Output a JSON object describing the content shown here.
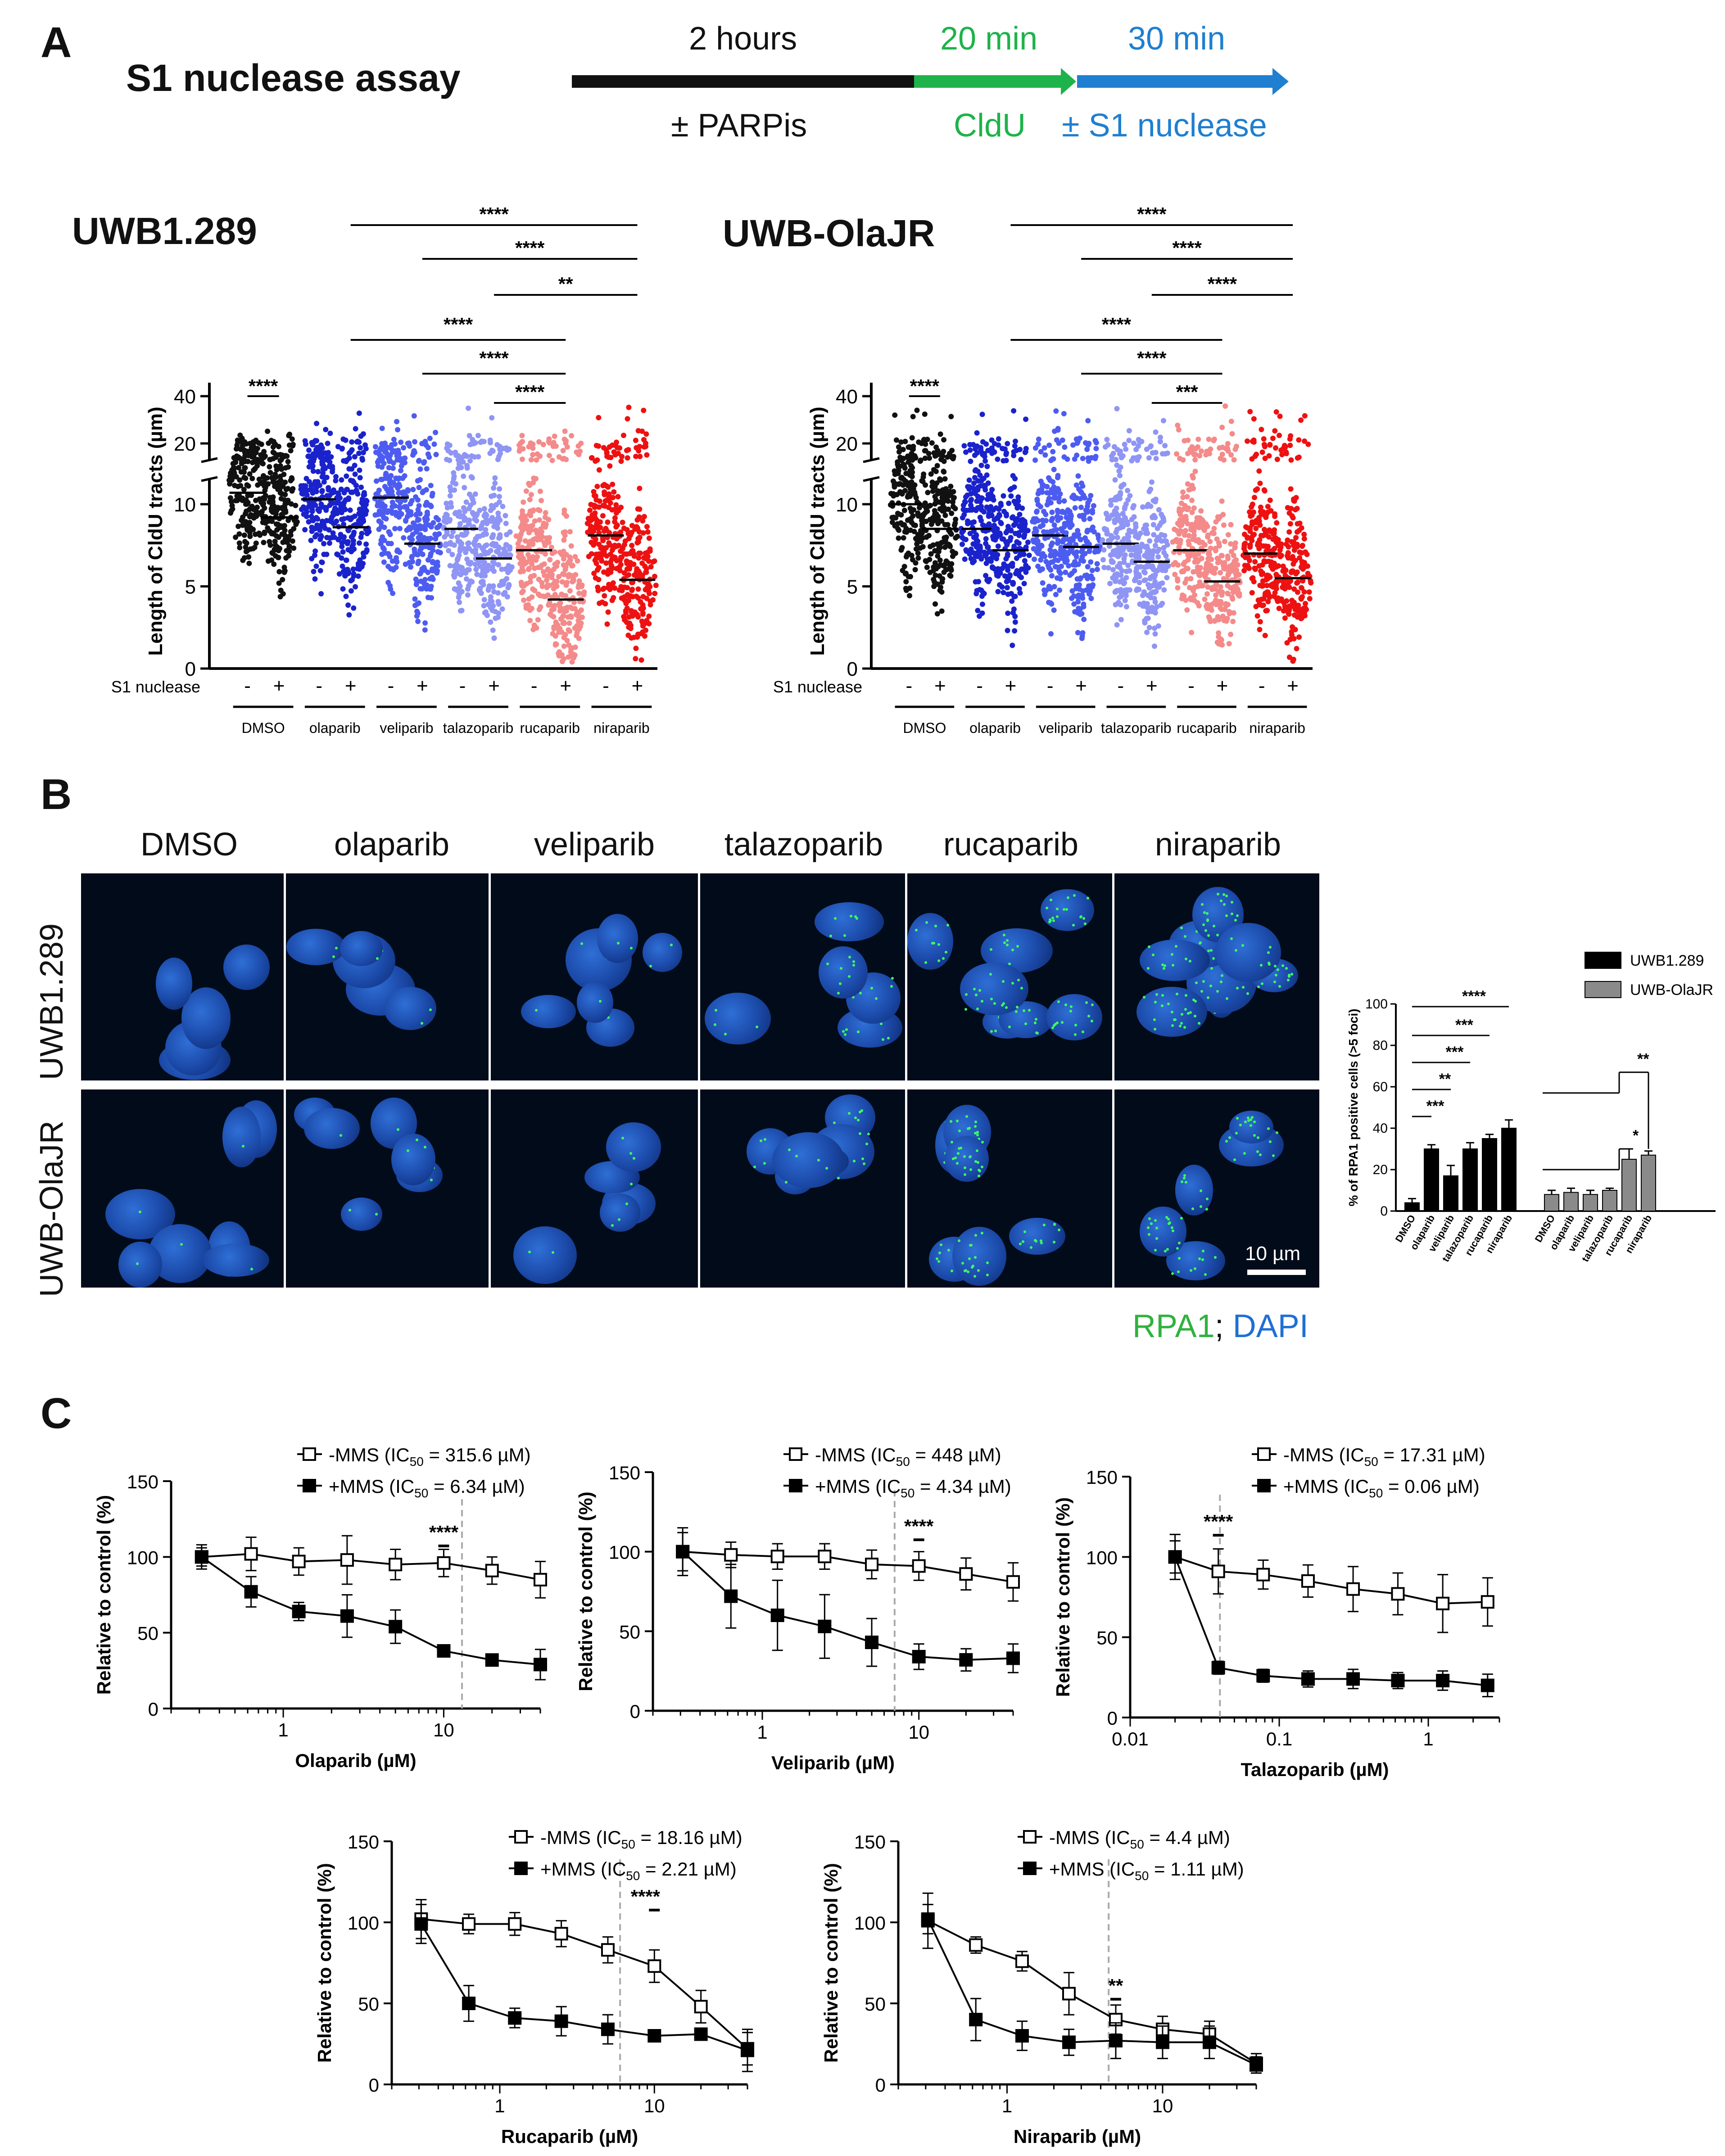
{
  "panelA": {
    "label": "A",
    "assay_title": "S1 nuclease assay",
    "timeline": {
      "step1_duration": "2 hours",
      "step1_label": "± PARPis",
      "step2_duration": "20 min",
      "step2_label": "CldU",
      "step3_duration": "30 min",
      "step3_label": "± S1 nuclease",
      "colors": {
        "black": "#111111",
        "green": "#1db34a",
        "blue": "#1f7fd0"
      }
    },
    "plots": [
      {
        "title": "UWB1.289",
        "ylabel": "Length of CldU tracts (µm)",
        "s1_label": "S1 nuclease",
        "groups": [
          "DMSO",
          "olaparib",
          "veliparib",
          "talazoparib",
          "rucaparib",
          "niraparib"
        ],
        "signs": [
          "-",
          "+"
        ],
        "medians": [
          [
            10.7,
            9.2
          ],
          [
            10.3,
            8.6
          ],
          [
            10.4,
            7.6
          ],
          [
            8.5,
            6.7
          ],
          [
            7.2,
            4.2
          ],
          [
            8.1,
            5.4
          ]
        ],
        "colors": [
          "#111111",
          "#1a22cc",
          "#4d5cf0",
          "#8f95f4",
          "#f48a8a",
          "#ee1111"
        ],
        "sig_upper": [
          "****",
          "****",
          "**"
        ],
        "sig_lower": [
          "****",
          "****",
          "****"
        ],
        "sig_dmso": "****"
      },
      {
        "title": "UWB-OlaJR",
        "ylabel": "Length of CldU tracts (µm)",
        "s1_label": "S1 nuclease",
        "groups": [
          "DMSO",
          "olaparib",
          "veliparib",
          "talazoparib",
          "rucaparib",
          "niraparib"
        ],
        "signs": [
          "-",
          "+"
        ],
        "medians": [
          [
            10.0,
            8.5
          ],
          [
            8.5,
            7.2
          ],
          [
            8.1,
            7.4
          ],
          [
            7.6,
            6.5
          ],
          [
            7.2,
            5.3
          ],
          [
            7.0,
            5.5
          ]
        ],
        "colors": [
          "#111111",
          "#1a22cc",
          "#4d5cf0",
          "#8f95f4",
          "#f48a8a",
          "#ee1111"
        ],
        "sig_upper": [
          "****",
          "****",
          "****"
        ],
        "sig_lower": [
          "****",
          "****",
          "***"
        ],
        "sig_dmso": "****"
      }
    ],
    "y_ticks_low": [
      "0",
      "5",
      "10"
    ],
    "y_ticks_high": [
      "20",
      "40"
    ]
  },
  "panelB": {
    "label": "B",
    "columns": [
      "DMSO",
      "olaparib",
      "veliparib",
      "talazoparib",
      "rucaparib",
      "niraparib"
    ],
    "rows": [
      "UWB1.289",
      "UWB-OlaJR"
    ],
    "scale_bar": "10 µm",
    "stain_green": "RPA1",
    "stain_sep": ";",
    "stain_blue": "DAPI",
    "bar_chart": {
      "type": "bar",
      "ylabel": "% of RPA1 positive cells (>5 foci)",
      "ylim": [
        0,
        100
      ],
      "yticks": [
        "0",
        "20",
        "40",
        "60",
        "80",
        "100"
      ],
      "categories": [
        "DMSO",
        "olaparib",
        "veliparib",
        "talazoparib",
        "rucaparib",
        "niraparib"
      ],
      "series": [
        {
          "name": "UWB1.289",
          "values": [
            4,
            30,
            17,
            30,
            35,
            40
          ],
          "errors": [
            2,
            2,
            5,
            3,
            2,
            4
          ],
          "color": "#000000"
        },
        {
          "name": "UWB-OlaJR",
          "values": [
            8,
            9,
            8,
            10,
            25,
            27
          ],
          "errors": [
            2,
            2,
            2,
            1,
            5,
            2
          ],
          "color": "#8a8a8a"
        }
      ],
      "sig_black": [
        "****",
        "***",
        "***",
        "**",
        "***"
      ],
      "sig_grey": [
        "**",
        "*"
      ]
    }
  },
  "panelC": {
    "label": "C",
    "y_label": "Relative to control (%)",
    "sig_plot_labels": [
      {
        "minus": "-MMS (IC",
        "minus_val": " = 315.6 µM)",
        "plus": "+MMS (IC",
        "plus_val": " = 6.34 µM)",
        "sig": "****",
        "xlabel": "Olaparib (µM)"
      },
      {
        "minus": "-MMS (IC",
        "minus_val": " = 448 µM)",
        "plus": "+MMS (IC",
        "plus_val": " = 4.34 µM)",
        "sig": "****",
        "xlabel": "Veliparib (µM)"
      },
      {
        "minus": "-MMS (IC",
        "minus_val": " = 17.31 µM)",
        "plus": "+MMS (IC",
        "plus_val": " = 0.06 µM)",
        "sig": "****",
        "xlabel": "Talazoparib (µM)"
      },
      {
        "minus": "-MMS (IC",
        "minus_val": " = 18.16 µM)",
        "plus": "+MMS (IC",
        "plus_val": " = 2.21 µM)",
        "sig": "****",
        "xlabel": "Rucaparib (µM)"
      },
      {
        "minus": "-MMS (IC",
        "minus_val": " = 4.4 µM)",
        "plus": "+MMS (IC",
        "plus_val": " = 1.11 µM)",
        "sig": "**",
        "xlabel": "Niraparib (µM)"
      }
    ],
    "ic_sub": "50"
  },
  "chart_data": [
    {
      "type": "line",
      "title": "",
      "xlabel": "Olaparib (µM)",
      "ylabel": "Relative to control (%)",
      "xscale": "log",
      "xlim": [
        0.2,
        40
      ],
      "ylim": [
        0,
        150
      ],
      "xticks": [
        1,
        10
      ],
      "yticks": [
        0,
        50,
        100,
        150
      ],
      "x": [
        0.31,
        0.63,
        1.25,
        2.5,
        5,
        10,
        20,
        40
      ],
      "series": [
        {
          "name": "-MMS",
          "values": [
            100,
            102,
            97,
            98,
            95,
            96,
            91,
            85
          ],
          "errors": [
            8,
            11,
            9,
            16,
            10,
            9,
            9,
            12
          ],
          "marker": "open-square"
        },
        {
          "name": "+MMS",
          "values": [
            100,
            77,
            64,
            61,
            54,
            38,
            32,
            29
          ],
          "errors": [
            6,
            10,
            6,
            14,
            11,
            4,
            3,
            10
          ],
          "marker": "filled-square"
        }
      ],
      "ic50_line_x": 13
    },
    {
      "type": "line",
      "title": "",
      "xlabel": "Veliparib (µM)",
      "ylabel": "Relative to control (%)",
      "xscale": "log",
      "xlim": [
        0.2,
        40
      ],
      "ylim": [
        0,
        150
      ],
      "xticks": [
        1,
        10
      ],
      "yticks": [
        0,
        50,
        100,
        150
      ],
      "x": [
        0.31,
        0.63,
        1.25,
        2.5,
        5,
        10,
        20,
        40
      ],
      "series": [
        {
          "name": "-MMS",
          "values": [
            100,
            98,
            97,
            97,
            92,
            91,
            86,
            81
          ],
          "errors": [
            15,
            8,
            8,
            8,
            9,
            9,
            10,
            12
          ],
          "marker": "open-square"
        },
        {
          "name": "+MMS",
          "values": [
            100,
            72,
            60,
            53,
            43,
            34,
            32,
            33
          ],
          "errors": [
            12,
            20,
            22,
            20,
            15,
            8,
            7,
            9
          ],
          "marker": "filled-square"
        }
      ],
      "ic50_line_x": 7
    },
    {
      "type": "line",
      "title": "",
      "xlabel": "Talazoparib (µM)",
      "ylabel": "Relative to control (%)",
      "xscale": "log",
      "xlim": [
        0.01,
        3
      ],
      "ylim": [
        0,
        150
      ],
      "xticks": [
        0.01,
        0.1,
        1
      ],
      "yticks": [
        0,
        50,
        100,
        150
      ],
      "x": [
        0.02,
        0.039,
        0.078,
        0.156,
        0.313,
        0.625,
        1.25,
        2.5
      ],
      "series": [
        {
          "name": "-MMS",
          "values": [
            100,
            91,
            89,
            85,
            80,
            77,
            71,
            72
          ],
          "errors": [
            14,
            14,
            9,
            10,
            14,
            13,
            18,
            15
          ],
          "marker": "open-square"
        },
        {
          "name": "+MMS",
          "values": [
            100,
            31,
            26,
            24,
            24,
            23,
            23,
            20
          ],
          "errors": [
            10,
            4,
            4,
            5,
            6,
            5,
            6,
            7
          ],
          "marker": "filled-square"
        }
      ],
      "ic50_line_x": 0.04
    },
    {
      "type": "line",
      "title": "",
      "xlabel": "Rucaparib (µM)",
      "ylabel": "Relative to control (%)",
      "xscale": "log",
      "xlim": [
        0.2,
        40
      ],
      "ylim": [
        0,
        150
      ],
      "xticks": [
        1,
        10
      ],
      "yticks": [
        0,
        50,
        100,
        150
      ],
      "x": [
        0.31,
        0.63,
        1.25,
        2.5,
        5,
        10,
        20,
        40
      ],
      "series": [
        {
          "name": "-MMS",
          "values": [
            102,
            99,
            99,
            93,
            83,
            73,
            48,
            22
          ],
          "errors": [
            12,
            6,
            7,
            8,
            8,
            10,
            10,
            10
          ],
          "marker": "open-square"
        },
        {
          "name": "+MMS",
          "values": [
            99,
            50,
            41,
            39,
            34,
            30,
            31,
            21
          ],
          "errors": [
            12,
            11,
            6,
            9,
            9,
            3,
            3,
            13
          ],
          "marker": "filled-square"
        }
      ],
      "ic50_line_x": 6
    },
    {
      "type": "line",
      "title": "",
      "xlabel": "Niraparib (µM)",
      "ylabel": "Relative to control (%)",
      "xscale": "log",
      "xlim": [
        0.2,
        40
      ],
      "ylim": [
        0,
        150
      ],
      "xticks": [
        1,
        10
      ],
      "yticks": [
        0,
        50,
        100,
        150
      ],
      "x": [
        0.31,
        0.63,
        1.25,
        2.5,
        5,
        10,
        20,
        40
      ],
      "series": [
        {
          "name": "-MMS",
          "values": [
            101,
            86,
            76,
            56,
            40,
            34,
            31,
            13
          ],
          "errors": [
            17,
            5,
            6,
            13,
            9,
            8,
            8,
            6
          ],
          "marker": "open-square"
        },
        {
          "name": "+MMS",
          "values": [
            102,
            40,
            30,
            26,
            27,
            26,
            26,
            12
          ],
          "errors": [
            9,
            13,
            9,
            8,
            11,
            10,
            10,
            5
          ],
          "marker": "filled-square"
        }
      ],
      "ic50_line_x": 4.5
    }
  ]
}
